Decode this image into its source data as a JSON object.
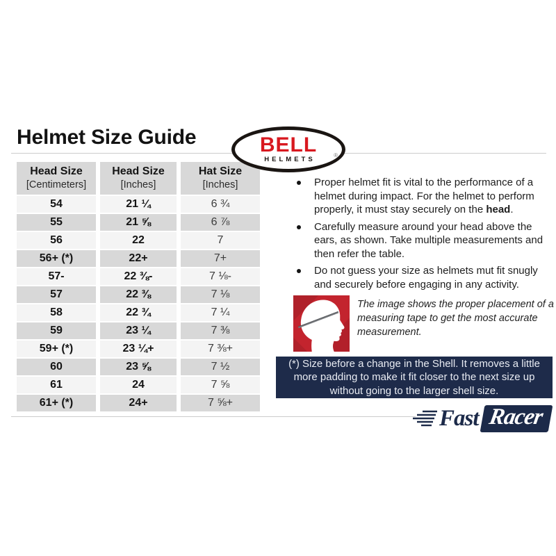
{
  "page": {
    "title": "Helmet Size Guide"
  },
  "bell_logo": {
    "brand": "BELL",
    "registered": "®",
    "sub_brand": "HELMETS",
    "red": "#d8181f",
    "black": "#1a1512"
  },
  "size_table": {
    "headers": [
      {
        "line1": "Head Size",
        "line2": "[Centimeters]"
      },
      {
        "line1": "Head Size",
        "line2": "[Inches]"
      },
      {
        "line1": "Hat Size",
        "line2": "[Inches]"
      }
    ],
    "rows": [
      [
        "54",
        "21 ¼",
        "6 ¾"
      ],
      [
        "55",
        "21 ⅝",
        "6 ⅞"
      ],
      [
        "56",
        "22",
        "7"
      ],
      [
        "56+ (*)",
        "22+",
        "7+"
      ],
      [
        "57-",
        "22 ⅜-",
        "7 ⅛-"
      ],
      [
        "57",
        "22 ⅜",
        "7 ⅛"
      ],
      [
        "58",
        "22 ¾",
        "7 ¼"
      ],
      [
        "59",
        "23 ¼",
        "7 ⅜"
      ],
      [
        "59+ (*)",
        "23 ¼+",
        "7 ⅜+"
      ],
      [
        "60",
        "23 ⅝",
        "7 ½"
      ],
      [
        "61",
        "24",
        "7 ⅝"
      ],
      [
        "61+ (*)",
        "24+",
        "7 ⅝+"
      ]
    ],
    "row_light": "#f4f4f4",
    "row_gray": "#d8d8d8"
  },
  "fit_tips": [
    {
      "pre": "Proper helmet fit is vital to the performance of a helmet during impact. For the helmet to perform properly, it must stay securely on the ",
      "bold": "head",
      "post": "."
    },
    {
      "pre": "Carefully measure around your head above the ears, as shown. Take multiple measurements and then refer the table.",
      "bold": "",
      "post": ""
    },
    {
      "pre": "Do not guess your size as helmets mut fit snugly and securely before engaging in any activity.",
      "bold": "",
      "post": ""
    }
  ],
  "figure": {
    "caption": "The image shows the proper placement of a measuring tape to get the most accurate measurement.",
    "background_red": "#c3242e"
  },
  "shell_note": {
    "lines": [
      "(*) Size before a change in the Shell. It removes a little",
      "more padding to make it fit closer to the next size up",
      "without going to the larger shell size."
    ],
    "background": "#1e2b4a"
  },
  "footer_logo": {
    "fast": "Fast",
    "racer": "Racer",
    "navy": "#1c2a49"
  }
}
